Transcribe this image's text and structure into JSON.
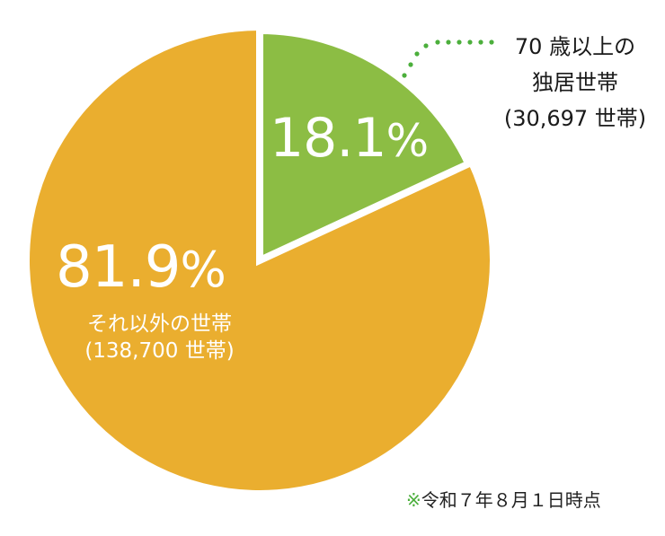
{
  "chart_data": {
    "type": "pie",
    "title": "",
    "start_angle_deg": 0,
    "direction": "clockwise",
    "slices": [
      {
        "name": "70歳以上の独居世帯",
        "percent": 18.1,
        "households": 30697,
        "color": "#8cbd44"
      },
      {
        "name": "それ以外の世帯",
        "percent": 81.9,
        "households": 138700,
        "color": "#eaae2f"
      }
    ],
    "legend": "none",
    "annotations": [
      "※令和７年８月１日時点"
    ]
  },
  "labels": {
    "green_pct": "18.1",
    "green_pct_sym": "%",
    "orange_pct": "81.9",
    "orange_pct_sym": "%",
    "green_title_line1": "70 歳以上の",
    "green_title_line2": "独居世帯",
    "green_count": "(30,697 世帯)",
    "orange_title": "それ以外の世帯",
    "orange_count": "(138,700 世帯)"
  },
  "note": {
    "mark": "※",
    "text": "令和７年８月１日時点"
  },
  "colors": {
    "green": "#8cbd44",
    "orange": "#eaae2f",
    "leader_dots": "#4caf3c"
  }
}
